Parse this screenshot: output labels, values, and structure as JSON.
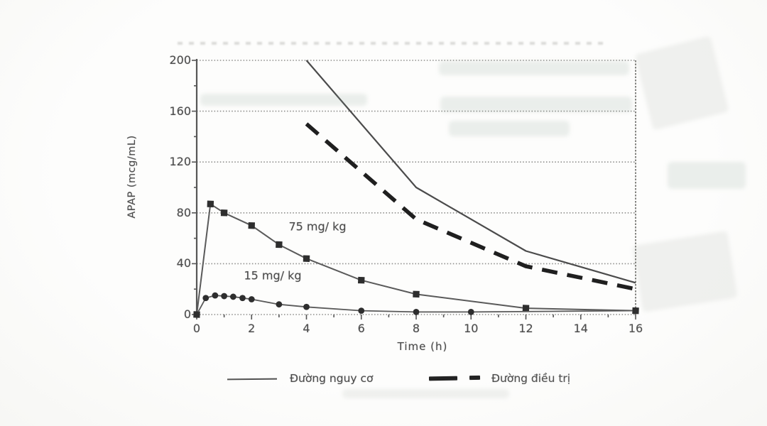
{
  "figure": {
    "description": "Scanned line chart of APAP plasma concentration versus time with toxicity nomogram lines",
    "y_axis_title": "APAP (mcg/mL)",
    "x_axis_title": "Time  (h)"
  },
  "chart_data": {
    "type": "line",
    "title": "",
    "xlabel": "Time  (h)",
    "ylabel": "APAP (mcg/mL)",
    "xlim": [
      0,
      16
    ],
    "ylim": [
      0,
      200
    ],
    "x_ticks": [
      0,
      2,
      4,
      6,
      8,
      10,
      12,
      14,
      16
    ],
    "x_minor_tick_step": 1,
    "y_ticks": [
      0,
      40,
      80,
      120,
      160,
      200
    ],
    "y_minor_tick_step": 20,
    "grid": "horizontal dotted gridlines at each labeled y tick; plot framed on left, right, top, bottom",
    "legend_position": "bottom",
    "series": [
      {
        "key": "risk-line",
        "name": "Đường nguy cơ",
        "style": "thin solid line, no markers",
        "color": "#4b4b4b",
        "width": 2.2,
        "dash": "",
        "marker": "none",
        "points": [
          [
            4,
            200
          ],
          [
            8,
            100
          ],
          [
            12,
            50
          ],
          [
            16,
            25
          ]
        ]
      },
      {
        "key": "treatment-line",
        "name": "Đường điều trị",
        "style": "thick dashed line, no markers",
        "color": "#1f1f1f",
        "width": 5.6,
        "dash": "22 14",
        "marker": "none",
        "points": [
          [
            4,
            150
          ],
          [
            8,
            75
          ],
          [
            12,
            38
          ],
          [
            16,
            20
          ]
        ]
      },
      {
        "key": "dose-75",
        "name": "75 mg/ kg",
        "style": "thin gray line with filled square markers",
        "color": "#5a5a5a",
        "width": 2,
        "dash": "",
        "marker": "square",
        "marker_color": "#2e2e2e",
        "points": [
          [
            0,
            0
          ],
          [
            0.5,
            87
          ],
          [
            1,
            80
          ],
          [
            2,
            70
          ],
          [
            3,
            55
          ],
          [
            4,
            44
          ],
          [
            6,
            27
          ],
          [
            8,
            16
          ],
          [
            12,
            5
          ],
          [
            16,
            3
          ]
        ]
      },
      {
        "key": "dose-15",
        "name": "15 mg/ kg",
        "style": "thin gray line with filled circle markers",
        "color": "#5a5a5a",
        "width": 1.8,
        "dash": "",
        "marker": "circle",
        "marker_color": "#2e2e2e",
        "points": [
          [
            0,
            0
          ],
          [
            0.33,
            13
          ],
          [
            0.67,
            15
          ],
          [
            1,
            14.5
          ],
          [
            1.33,
            14
          ],
          [
            1.67,
            13
          ],
          [
            2,
            12
          ],
          [
            3,
            8
          ],
          [
            4,
            6
          ],
          [
            6,
            3
          ],
          [
            8,
            2
          ],
          [
            10,
            2
          ],
          [
            16,
            3
          ]
        ]
      }
    ],
    "annotations": [
      {
        "text": "75 mg/ kg"
      },
      {
        "text": "15 mg/ kg"
      }
    ],
    "legend": [
      {
        "label": "Đường nguy cơ",
        "swatch": "thin-solid-line"
      },
      {
        "label": "Đường điều trị",
        "swatch": "thick-dashed-line"
      }
    ]
  }
}
